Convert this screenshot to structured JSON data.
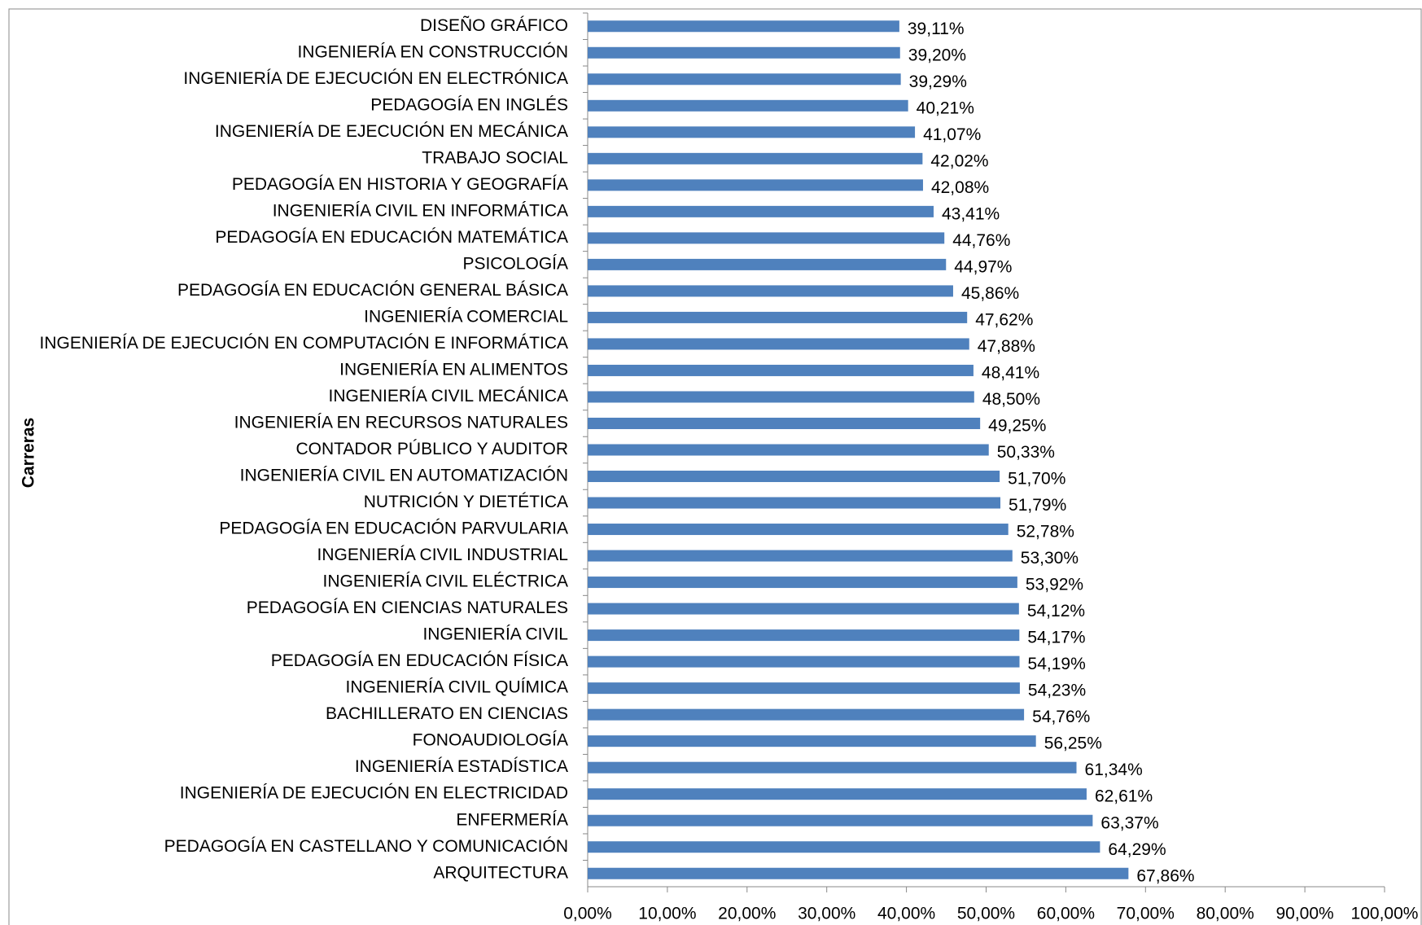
{
  "chart_data": {
    "type": "bar",
    "orientation": "horizontal",
    "y_label": "Carreras",
    "color": "#4f81bd",
    "categories": [
      "DISEÑO GRÁFICO",
      "INGENIERÍA EN CONSTRUCCIÓN",
      "INGENIERÍA DE EJECUCIÓN EN ELECTRÓNICA",
      "PEDAGOGÍA EN INGLÉS",
      "INGENIERÍA DE EJECUCIÓN EN MECÁNICA",
      "TRABAJO SOCIAL",
      "PEDAGOGÍA EN HISTORIA Y GEOGRAFÍA",
      "INGENIERÍA CIVIL EN INFORMÁTICA",
      "PEDAGOGÍA EN EDUCACIÓN MATEMÁTICA",
      "PSICOLOGÍA",
      "PEDAGOGÍA EN EDUCACIÓN GENERAL BÁSICA",
      "INGENIERÍA COMERCIAL",
      "INGENIERÍA DE EJECUCIÓN EN COMPUTACIÓN E INFORMÁTICA",
      "INGENIERÍA EN ALIMENTOS",
      "INGENIERÍA CIVIL MECÁNICA",
      "INGENIERÍA EN RECURSOS NATURALES",
      "CONTADOR PÚBLICO Y AUDITOR",
      "INGENIERÍA CIVIL EN AUTOMATIZACIÓN",
      "NUTRICIÓN Y DIETÉTICA",
      "PEDAGOGÍA EN EDUCACIÓN PARVULARIA",
      "INGENIERÍA CIVIL INDUSTRIAL",
      "INGENIERÍA CIVIL ELÉCTRICA",
      "PEDAGOGÍA EN CIENCIAS NATURALES",
      "INGENIERÍA CIVIL",
      "PEDAGOGÍA EN EDUCACIÓN FÍSICA",
      "INGENIERÍA CIVIL QUÍMICA",
      "BACHILLERATO EN CIENCIAS",
      "FONOAUDIOLOGÍA",
      "INGENIERÍA ESTADÍSTICA",
      "INGENIERÍA DE EJECUCIÓN EN ELECTRICIDAD",
      "ENFERMERÍA",
      "PEDAGOGÍA EN CASTELLANO Y COMUNICACIÓN",
      "ARQUITECTURA"
    ],
    "values": [
      39.11,
      39.2,
      39.29,
      40.21,
      41.07,
      42.02,
      42.08,
      43.41,
      44.76,
      44.97,
      45.86,
      47.62,
      47.88,
      48.41,
      48.5,
      49.25,
      50.33,
      51.7,
      51.79,
      52.78,
      53.3,
      53.92,
      54.12,
      54.17,
      54.19,
      54.23,
      54.76,
      56.25,
      61.34,
      62.61,
      63.37,
      64.29,
      67.86
    ],
    "value_labels": [
      "39,11%",
      "39,20%",
      "39,29%",
      "40,21%",
      "41,07%",
      "42,02%",
      "42,08%",
      "43,41%",
      "44,76%",
      "44,97%",
      "45,86%",
      "47,62%",
      "47,88%",
      "48,41%",
      "48,50%",
      "49,25%",
      "50,33%",
      "51,70%",
      "51,79%",
      "52,78%",
      "53,30%",
      "53,92%",
      "54,12%",
      "54,17%",
      "54,19%",
      "54,23%",
      "54,76%",
      "56,25%",
      "61,34%",
      "62,61%",
      "63,37%",
      "64,29%",
      "67,86%"
    ],
    "xlim": [
      0,
      100
    ],
    "xticks": [
      {
        "value": 0,
        "label": "0,00%"
      },
      {
        "value": 10,
        "label": "10,00%"
      },
      {
        "value": 20,
        "label": "20,00%"
      },
      {
        "value": 30,
        "label": "30,00%"
      },
      {
        "value": 40,
        "label": "40,00%"
      },
      {
        "value": 50,
        "label": "50,00%"
      },
      {
        "value": 60,
        "label": "60,00%"
      },
      {
        "value": 70,
        "label": "70,00%"
      },
      {
        "value": 80,
        "label": "80,00%"
      },
      {
        "value": 90,
        "label": "90,00%"
      },
      {
        "value": 100,
        "label": "100,00%"
      }
    ]
  }
}
